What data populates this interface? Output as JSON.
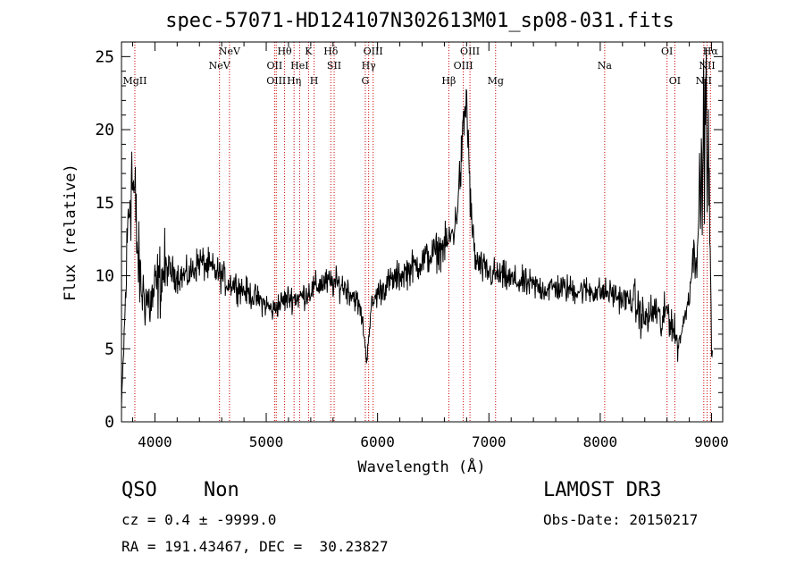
{
  "chart_data": {
    "type": "line",
    "title": "spec-57071-HD124107N302613M01_sp08-031.fits",
    "xlabel": "Wavelength (Å)",
    "ylabel": "Flux (relative)",
    "xlim": [
      3700,
      9100
    ],
    "ylim": [
      0,
      26
    ],
    "xticks": [
      4000,
      5000,
      6000,
      7000,
      8000,
      9000
    ],
    "yticks": [
      0,
      5,
      10,
      15,
      20,
      25
    ],
    "grid": false,
    "spectrum_anchors": {
      "x": [
        3700,
        3730,
        3760,
        3790,
        3820,
        3850,
        3880,
        3920,
        3960,
        4000,
        4100,
        4200,
        4300,
        4400,
        4500,
        4600,
        4650,
        4700,
        4800,
        4900,
        5000,
        5060,
        5100,
        5200,
        5300,
        5400,
        5500,
        5600,
        5700,
        5800,
        5850,
        5880,
        5900,
        5920,
        5950,
        6000,
        6100,
        6200,
        6300,
        6400,
        6500,
        6600,
        6650,
        6700,
        6730,
        6760,
        6780,
        6800,
        6820,
        6840,
        6880,
        6950,
        7000,
        7100,
        7200,
        7300,
        7400,
        7500,
        7600,
        7700,
        7800,
        7900,
        8000,
        8100,
        8200,
        8300,
        8350,
        8400,
        8450,
        8500,
        8550,
        8600,
        8650,
        8700,
        8750,
        8800,
        8830,
        8860,
        8900,
        8920,
        8940,
        8960,
        8980,
        9000
      ],
      "y": [
        1,
        7,
        14,
        17,
        15,
        11,
        9,
        8.5,
        8,
        9,
        10.5,
        10,
        10,
        11,
        10.5,
        10,
        9.5,
        9.5,
        9,
        8.5,
        8,
        7.6,
        8,
        8.5,
        8.5,
        9,
        9.5,
        9.5,
        9.3,
        8.5,
        7.5,
        6,
        4,
        6,
        8,
        8.8,
        9.5,
        10,
        10.5,
        11,
        11.5,
        12,
        12.5,
        13.5,
        16,
        18.5,
        21,
        22,
        18,
        14,
        11,
        10.4,
        10.2,
        10,
        9.7,
        9.5,
        9.3,
        9.1,
        9.2,
        9.1,
        9.0,
        9.0,
        8.9,
        8.8,
        8.4,
        8.3,
        7.5,
        7,
        7.2,
        7.8,
        6.5,
        7.8,
        6.5,
        5.2,
        6.8,
        8.8,
        11,
        12.5,
        15,
        18,
        21,
        20,
        15,
        5
      ]
    },
    "spectral_lines": [
      {
        "name": "MgII",
        "wavelength": 3820,
        "label_row": 3
      },
      {
        "name": "NeV",
        "wavelength": 4580,
        "label_row": 2
      },
      {
        "name": "NeV",
        "wavelength": 4670,
        "label_row": 1
      },
      {
        "name": "OII",
        "wavelength": 5075,
        "label_row": 2
      },
      {
        "name": "OIII",
        "wavelength": 5090,
        "label_row": 3
      },
      {
        "name": "Hθ",
        "wavelength": 5165,
        "label_row": 1
      },
      {
        "name": "Hη",
        "wavelength": 5250,
        "label_row": 3
      },
      {
        "name": "HeI",
        "wavelength": 5300,
        "label_row": 2
      },
      {
        "name": "K",
        "wavelength": 5380,
        "label_row": 1
      },
      {
        "name": "H",
        "wavelength": 5430,
        "label_row": 3
      },
      {
        "name": "Hδ",
        "wavelength": 5580,
        "label_row": 1
      },
      {
        "name": "SII",
        "wavelength": 5610,
        "label_row": 2
      },
      {
        "name": "G",
        "wavelength": 5890,
        "label_row": 3
      },
      {
        "name": "Hγ",
        "wavelength": 5920,
        "label_row": 2
      },
      {
        "name": "OIII",
        "wavelength": 5960,
        "label_row": 1
      },
      {
        "name": "Hβ",
        "wavelength": 6640,
        "label_row": 3
      },
      {
        "name": "OIII",
        "wavelength": 6770,
        "label_row": 2
      },
      {
        "name": "OIII",
        "wavelength": 6830,
        "label_row": 1
      },
      {
        "name": "Mg",
        "wavelength": 7060,
        "label_row": 3
      },
      {
        "name": "Na",
        "wavelength": 8040,
        "label_row": 2
      },
      {
        "name": "OI",
        "wavelength": 8600,
        "label_row": 1
      },
      {
        "name": "OI",
        "wavelength": 8670,
        "label_row": 3
      },
      {
        "name": "NII",
        "wavelength": 8930,
        "label_row": 3
      },
      {
        "name": "NII",
        "wavelength": 8960,
        "label_row": 2
      },
      {
        "name": "Hα",
        "wavelength": 8990,
        "label_row": 1
      }
    ]
  },
  "info": {
    "class_label": "QSO",
    "subclass_label": "Non",
    "survey_label": "LAMOST DR3",
    "cz_line": "cz = 0.4 ± -9999.0",
    "obs_date_line": "Obs-Date: 20150217",
    "radec_line": "RA = 191.43467, DEC =  30.23827"
  }
}
